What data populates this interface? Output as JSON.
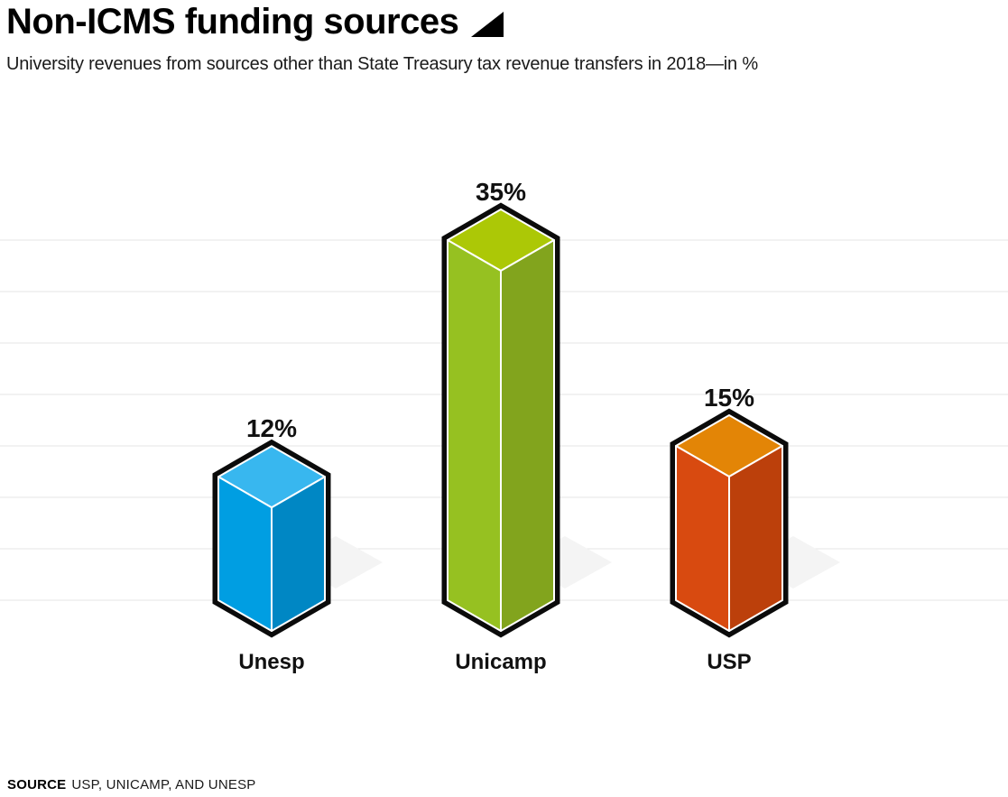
{
  "header": {
    "title": "Non-ICMS funding sources",
    "subtitle": "University revenues from sources other than State Treasury tax revenue transfers in 2018—in %"
  },
  "footer": {
    "source_label": "SOURCE",
    "source_text": "USP, UNICAMP, AND UNESP"
  },
  "chart_data": {
    "type": "bar",
    "style": "3d-isometric-columns",
    "title": "Non-ICMS funding sources",
    "subtitle": "University revenues from sources other than State Treasury tax revenue transfers in 2018—in %",
    "categories": [
      "Unesp",
      "Unicamp",
      "USP"
    ],
    "values": [
      12,
      35,
      15
    ],
    "value_labels": [
      "12%",
      "35%",
      "15%"
    ],
    "xlabel": "",
    "ylabel": "",
    "ylim": [
      0,
      35
    ],
    "gridline_step": 5,
    "grid": true,
    "legend": false,
    "tick_labels_shown": false,
    "bar_colors": [
      {
        "name": "blue",
        "top": "#38B7EF",
        "left": "#009EE2",
        "right": "#0087C4"
      },
      {
        "name": "green",
        "top": "#ACC806",
        "left": "#96C121",
        "right": "#82A41D"
      },
      {
        "name": "orange",
        "top": "#E38506",
        "left": "#D84A10",
        "right": "#BC400B"
      }
    ],
    "outline_color": "#0b0b0b",
    "face_separator_color": "#ffffff",
    "gridline_color": "#e4e4e4",
    "shadow_color": "#f4f4f4",
    "text_color": "#111111"
  }
}
